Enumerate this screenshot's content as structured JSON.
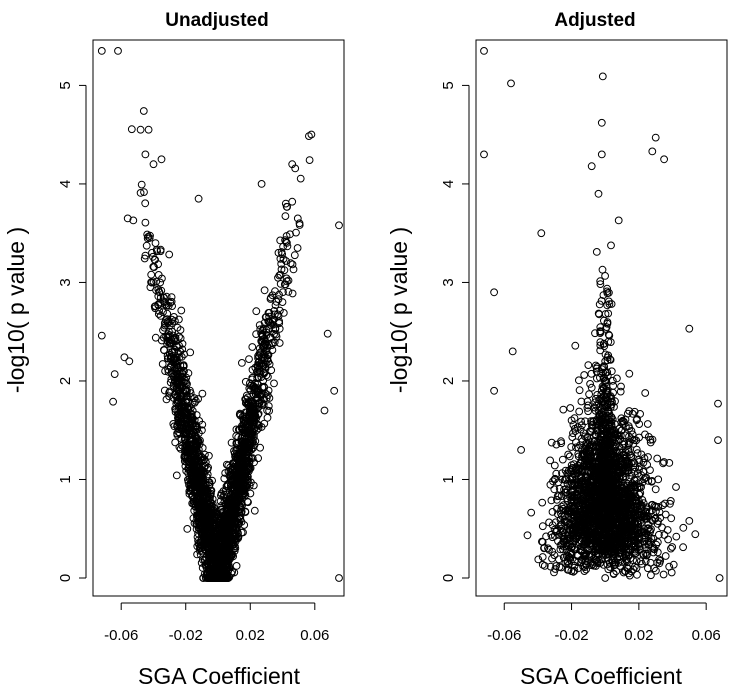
{
  "chart_data": [
    {
      "type": "scatter",
      "title": "Unadjusted",
      "xlabel": "SGA Coefficient",
      "ylabel": "-log10( p value )",
      "xlim": [
        -0.075,
        0.075
      ],
      "ylim": [
        0,
        5.4
      ],
      "x_ticks": [
        -0.06,
        -0.02,
        0.02,
        0.06
      ],
      "x_tick_labels": [
        "-0.06",
        "-0.02",
        "0.02",
        "0.06"
      ],
      "y_ticks": [
        0,
        1,
        2,
        3,
        4,
        5
      ],
      "y_tick_labels": [
        "0",
        "1",
        "2",
        "3",
        "4",
        "5"
      ],
      "grid": false,
      "series": [
        {
          "marker": "open-circle",
          "notable_points": [
            {
              "x": -0.072,
              "y": 5.35
            },
            {
              "x": -0.062,
              "y": 5.35
            },
            {
              "x": -0.046,
              "y": 4.74
            },
            {
              "x": -0.048,
              "y": 4.55
            },
            {
              "x": -0.043,
              "y": 4.55
            },
            {
              "x": -0.045,
              "y": 4.3
            },
            {
              "x": -0.04,
              "y": 4.2
            },
            {
              "x": -0.035,
              "y": 4.25
            },
            {
              "x": 0.046,
              "y": 4.2
            },
            {
              "x": 0.027,
              "y": 4.0
            },
            {
              "x": 0.042,
              "y": 3.8
            },
            {
              "x": 0.046,
              "y": 3.82
            },
            {
              "x": -0.012,
              "y": 3.85
            },
            {
              "x": 0.075,
              "y": 3.58
            },
            {
              "x": -0.056,
              "y": 3.65
            },
            {
              "x": -0.072,
              "y": 2.46
            },
            {
              "x": -0.064,
              "y": 2.07
            },
            {
              "x": -0.058,
              "y": 2.24
            },
            {
              "x": -0.065,
              "y": 1.79
            },
            {
              "x": 0.068,
              "y": 2.48
            },
            {
              "x": 0.072,
              "y": 1.9
            },
            {
              "x": 0.066,
              "y": 1.7
            },
            {
              "x": 0.075,
              "y": 0.0
            },
            {
              "x": -0.055,
              "y": 2.2
            }
          ],
          "bulk_description_points": [
            {
              "x": -0.04,
              "y": 3.0
            },
            {
              "x": -0.03,
              "y": 2.6
            },
            {
              "x": -0.02,
              "y": 2.0
            },
            {
              "x": -0.01,
              "y": 1.2
            },
            {
              "x": 0.0,
              "y": 0.0
            },
            {
              "x": 0.01,
              "y": 0.9
            },
            {
              "x": 0.02,
              "y": 1.6
            },
            {
              "x": 0.03,
              "y": 2.3
            },
            {
              "x": 0.04,
              "y": 2.8
            }
          ]
        }
      ]
    },
    {
      "type": "scatter",
      "title": "Adjusted",
      "xlabel": "SGA Coefficient",
      "ylabel": "-log10( p value )",
      "xlim": [
        -0.075,
        0.07
      ],
      "ylim": [
        0,
        5.4
      ],
      "x_ticks": [
        -0.06,
        -0.02,
        0.02,
        0.06
      ],
      "x_tick_labels": [
        "-0.06",
        "-0.02",
        "0.02",
        "0.06"
      ],
      "y_ticks": [
        0,
        1,
        2,
        3,
        4,
        5
      ],
      "y_tick_labels": [
        "0",
        "1",
        "2",
        "3",
        "4",
        "5"
      ],
      "grid": false,
      "series": [
        {
          "marker": "open-circle",
          "notable_points": [
            {
              "x": -0.072,
              "y": 5.35
            },
            {
              "x": -0.072,
              "y": 4.3
            },
            {
              "x": -0.056,
              "y": 5.02
            },
            {
              "x": -0.002,
              "y": 4.62
            },
            {
              "x": -0.002,
              "y": 4.3
            },
            {
              "x": 0.03,
              "y": 4.47
            },
            {
              "x": 0.028,
              "y": 4.33
            },
            {
              "x": 0.035,
              "y": 4.25
            },
            {
              "x": -0.008,
              "y": 4.18
            },
            {
              "x": -0.004,
              "y": 3.9
            },
            {
              "x": 0.008,
              "y": 3.63
            },
            {
              "x": -0.038,
              "y": 3.5
            },
            {
              "x": -0.066,
              "y": 2.9
            },
            {
              "x": 0.05,
              "y": 2.53
            },
            {
              "x": -0.055,
              "y": 2.3
            },
            {
              "x": -0.066,
              "y": 1.9
            },
            {
              "x": 0.067,
              "y": 1.77
            },
            {
              "x": 0.067,
              "y": 1.4
            },
            {
              "x": 0.068,
              "y": 0.0
            },
            {
              "x": -0.05,
              "y": 1.3
            },
            {
              "x": 0.05,
              "y": 0.58
            }
          ],
          "bulk_description_points": [
            {
              "x": -0.03,
              "y": 1.0
            },
            {
              "x": -0.02,
              "y": 1.6
            },
            {
              "x": -0.01,
              "y": 1.4
            },
            {
              "x": 0.0,
              "y": 2.2
            },
            {
              "x": 0.01,
              "y": 1.5
            },
            {
              "x": 0.02,
              "y": 1.2
            },
            {
              "x": 0.03,
              "y": 0.9
            },
            {
              "x": 0.0,
              "y": 0.0
            }
          ]
        }
      ]
    }
  ]
}
